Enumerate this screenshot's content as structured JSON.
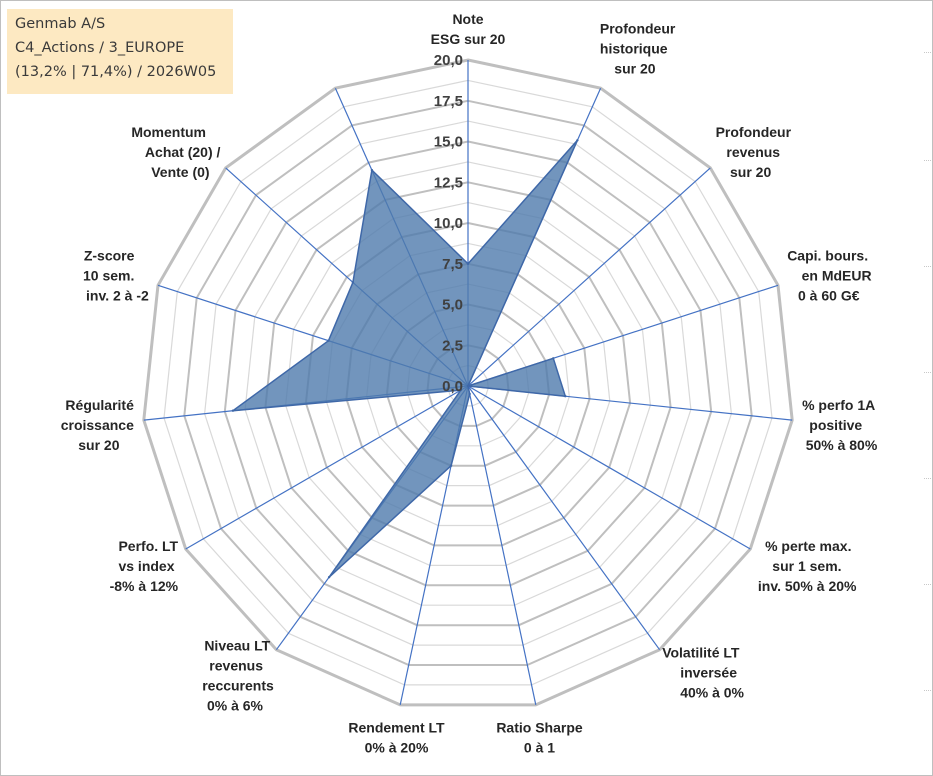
{
  "info": {
    "company": "Genmab A/S",
    "portfolio": "C4_Actions / 3_EUROPE",
    "stats": "(13,2% | 71,4%) / 2026W05"
  },
  "chart_data": {
    "type": "radar",
    "title": "Genmab A/S",
    "rmin": 0,
    "rmax": 20,
    "tick_step": 2.5,
    "tick_labels": [
      "0,0",
      "2,5",
      "5,0",
      "7,5",
      "10,0",
      "12,5",
      "15,0",
      "17,5",
      "20,0"
    ],
    "axes": [
      {
        "label": [
          "Note",
          "ESG sur 20"
        ],
        "value": 7.5
      },
      {
        "label": [
          "Profondeur",
          "historique",
          "sur 20"
        ],
        "value": 16.5
      },
      {
        "label": [
          "Profondeur",
          "revenus",
          "sur 20"
        ],
        "value": 0
      },
      {
        "label": [
          "Capi. bours.",
          "en MdEUR",
          "0 à 60 G€"
        ],
        "value": 5.5
      },
      {
        "label": [
          "% perfo 1A",
          "positive",
          "50% à 80%"
        ],
        "value": 6.0
      },
      {
        "label": [
          "% perte max.",
          "sur 1 sem.",
          "inv. 50% à 20%"
        ],
        "value": 0
      },
      {
        "label": [
          "Volatilité LT",
          "inversée",
          "40% à 0%"
        ],
        "value": 0
      },
      {
        "label": [
          "Ratio Sharpe",
          "0 à 1"
        ],
        "value": 0.5
      },
      {
        "label": [
          "Rendement LT",
          "0% à 20%"
        ],
        "value": 5.0
      },
      {
        "label": [
          "Niveau LT",
          "revenus",
          "reccurents",
          "0% à 6%"
        ],
        "value": 14.5
      },
      {
        "label": [
          "Perfo. LT",
          "vs index",
          "-8% à 12%"
        ],
        "value": 0.5
      },
      {
        "label": [
          "Régularité",
          "croissance",
          "sur 20"
        ],
        "value": 14.5
      },
      {
        "label": [
          "Z-score",
          "10 sem.",
          "inv. 2 à -2"
        ],
        "value": 9.0
      },
      {
        "label": [
          "Momentum",
          "Achat (20) /",
          "Vente (0)"
        ],
        "value": 9.5
      },
      {
        "label": [
          "",
          ""
        ],
        "value": 14.5
      }
    ]
  },
  "colors": {
    "fill": "#4f7aad",
    "fill_opacity": "0.8",
    "outline": "#3f68a8",
    "spoke": "#4472c4",
    "grid_major": "#bfbfbf",
    "grid_minor": "#d9d9d9",
    "info_bg": "#fde9c2"
  }
}
